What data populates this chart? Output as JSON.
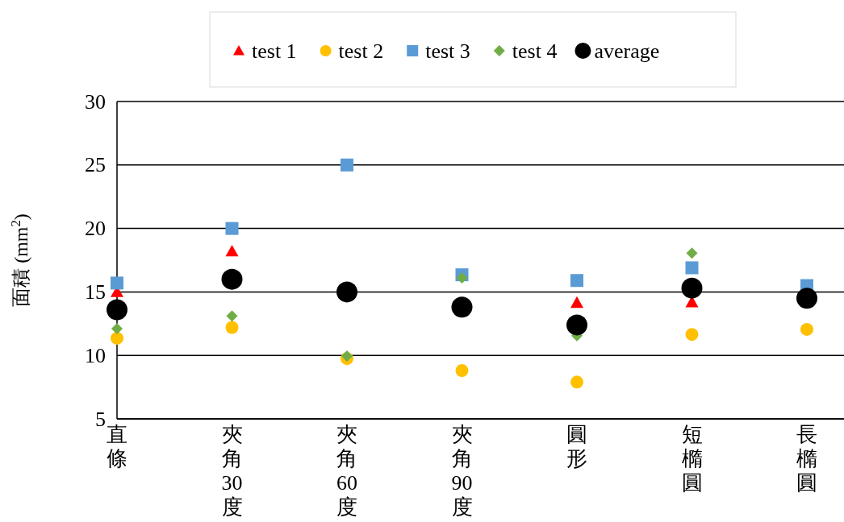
{
  "chart_data": {
    "type": "scatter",
    "ylabel": "面積 (mm$^{2}$)",
    "categories": [
      "直條",
      "夾角30度",
      "夾角60度",
      "夾角90度",
      "圓形",
      "短橢圓",
      "長橢圓"
    ],
    "series": [
      {
        "name": "test 1",
        "color": "#ff0000",
        "marker": "triangle",
        "values": [
          15.0,
          18.2,
          null,
          null,
          14.15,
          14.2,
          null
        ]
      },
      {
        "name": "test 2",
        "color": "#ffc000",
        "marker": "circle",
        "values": [
          11.35,
          12.2,
          9.75,
          8.8,
          7.9,
          11.65,
          12.05
        ]
      },
      {
        "name": "test 3",
        "color": "#5b9bd5",
        "marker": "square",
        "values": [
          15.7,
          20.0,
          25.0,
          16.35,
          15.9,
          16.9,
          15.5
        ]
      },
      {
        "name": "test 4",
        "color": "#70ad47",
        "marker": "diamond",
        "values": [
          12.1,
          13.1,
          9.95,
          16.1,
          11.55,
          18.05,
          null
        ]
      },
      {
        "name": "average",
        "color": "#000000",
        "marker": "circle",
        "values": [
          13.6,
          16.0,
          15.0,
          13.8,
          12.4,
          15.3,
          14.5
        ]
      }
    ],
    "ylim": [
      5,
      30
    ],
    "yticks": [
      5,
      10,
      15,
      20,
      25,
      30
    ],
    "grid": "y",
    "legend": "top"
  }
}
